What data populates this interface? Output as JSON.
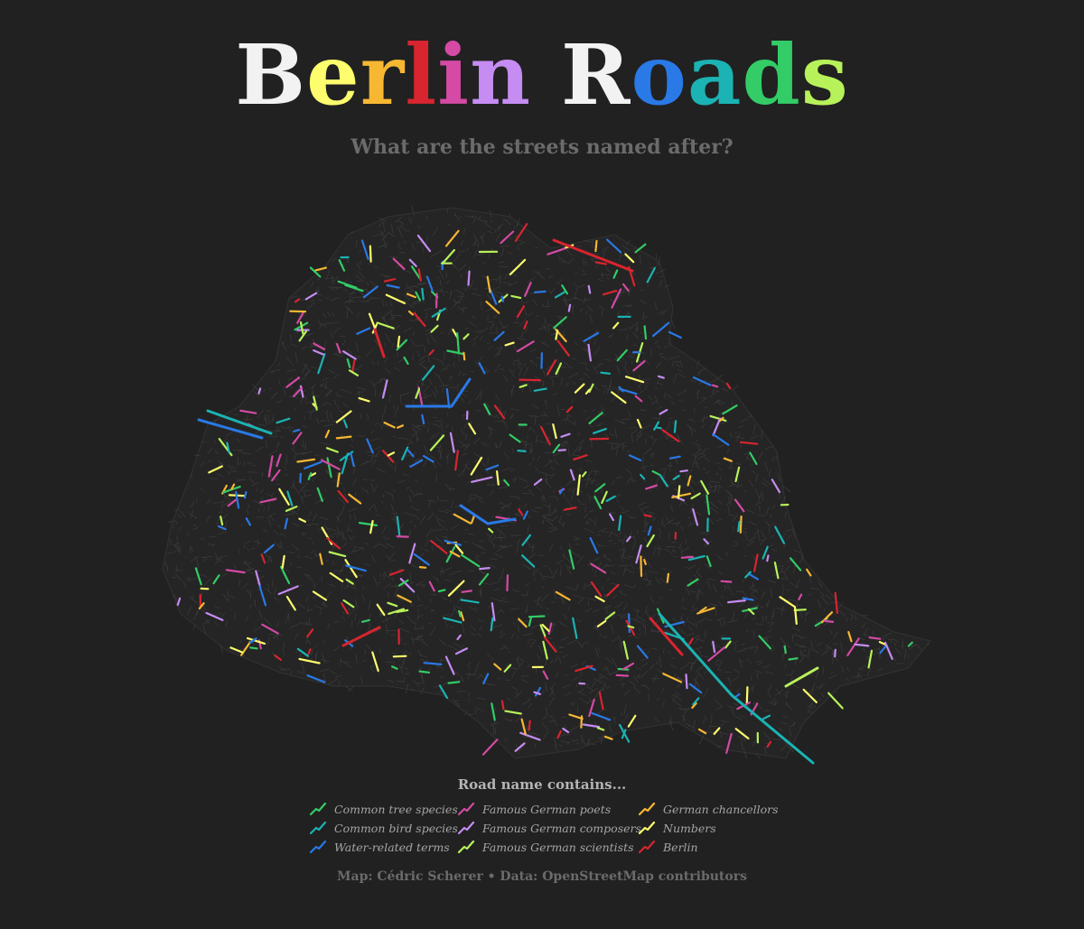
{
  "header": {
    "title_letters": [
      {
        "char": "B",
        "color": "#f2f2f2"
      },
      {
        "char": "e",
        "color": "#fdfd6d"
      },
      {
        "char": "r",
        "color": "#f7b733"
      },
      {
        "char": "l",
        "color": "#d8252f"
      },
      {
        "char": "i",
        "color": "#d44aa4"
      },
      {
        "char": "n",
        "color": "#c58cf2"
      },
      {
        "char": " ",
        "color": "#f2f2f2"
      },
      {
        "char": "R",
        "color": "#f2f2f2"
      },
      {
        "char": "o",
        "color": "#2979e6"
      },
      {
        "char": "a",
        "color": "#1bb3b3"
      },
      {
        "char": "d",
        "color": "#33cc66"
      },
      {
        "char": "s",
        "color": "#b8f25a"
      }
    ],
    "subtitle": "What are the streets named after?"
  },
  "legend": {
    "title": "Road name contains...",
    "items": [
      {
        "label": "Common tree species",
        "color": "#33cc66"
      },
      {
        "label": "Common bird species",
        "color": "#1bb3b3"
      },
      {
        "label": "Water-related terms",
        "color": "#2979e6"
      },
      {
        "label": "Famous German poets",
        "color": "#d44aa4"
      },
      {
        "label": "Famous German composers",
        "color": "#c58cf2"
      },
      {
        "label": "Famous German scientists",
        "color": "#b8f25a"
      },
      {
        "label": "German chancellors",
        "color": "#f7b733"
      },
      {
        "label": "Numbers",
        "color": "#fdfd6d"
      },
      {
        "label": "Berlin",
        "color": "#d8252f"
      }
    ]
  },
  "caption": "Map: Cédric Scherer • Data: OpenStreetMap contributors",
  "map": {
    "base_color": "#3a3a3a",
    "background": "#212121"
  }
}
